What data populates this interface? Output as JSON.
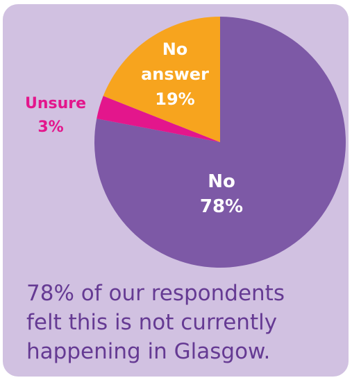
{
  "colors": {
    "background": "#d1c1e1",
    "no": "#7d59a6",
    "no_answer": "#f7a41e",
    "unsure": "#e3168c",
    "caption": "#653a93",
    "label_on_slice": "#ffffff"
  },
  "chart_data": {
    "type": "pie",
    "start_angle_deg": 0,
    "direction": "clockwise",
    "slices": [
      {
        "label": "No",
        "percent_label": "78%",
        "value": 78,
        "color": "#7d59a6"
      },
      {
        "label": "Unsure",
        "percent_label": "3%",
        "value": 3,
        "color": "#e3168c"
      },
      {
        "label": "No answer",
        "percent_label": "19%",
        "value": 19,
        "color": "#f7a41e"
      }
    ]
  },
  "caption": {
    "lines": [
      "78% of our respondents",
      "felt this is not currently",
      "happening in Glasgow."
    ]
  }
}
